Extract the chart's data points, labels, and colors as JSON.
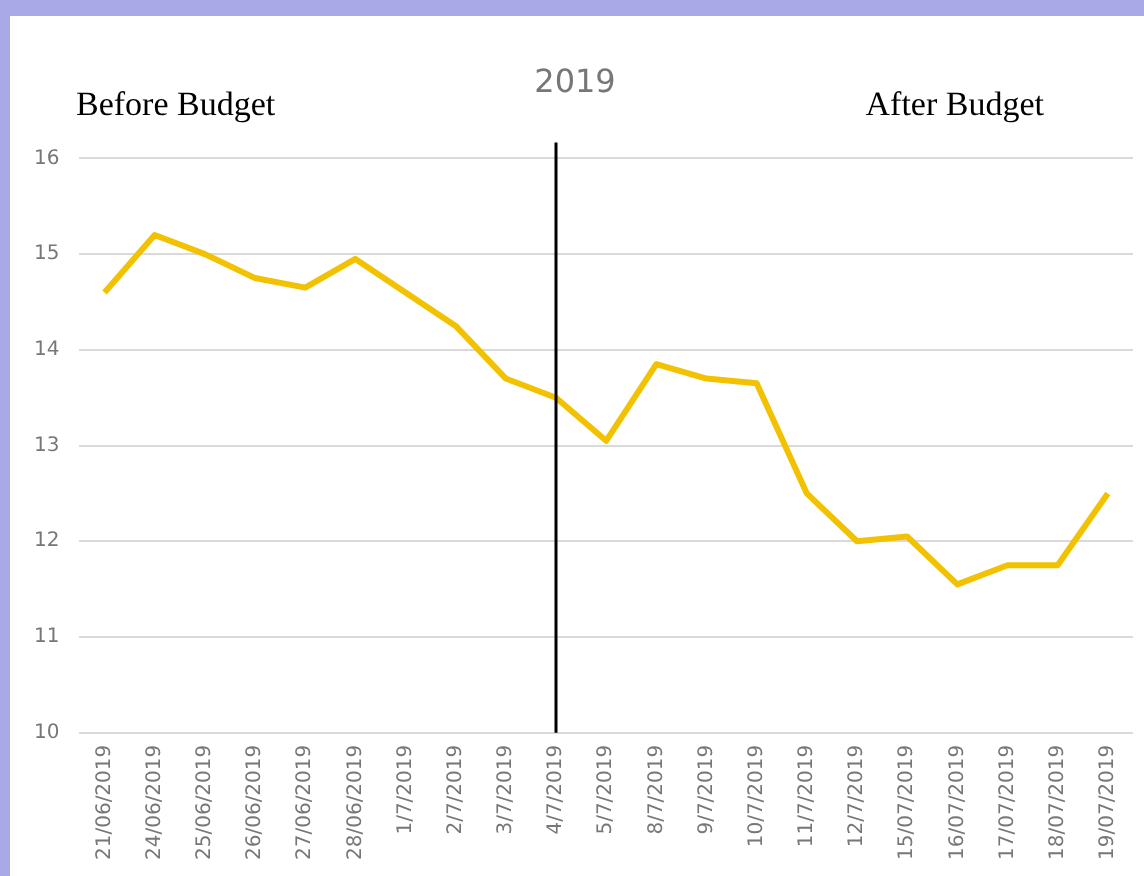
{
  "chart_data": {
    "type": "line",
    "title": "2019",
    "annotations": [
      "Before Budget",
      "After Budget"
    ],
    "categories": [
      "21/06/2019",
      "24/06/2019",
      "25/06/2019",
      "26/06/2019",
      "27/06/2019",
      "28/06/2019",
      "1/7/2019",
      "2/7/2019",
      "3/7/2019",
      "4/7/2019",
      "5/7/2019",
      "8/7/2019",
      "9/7/2019",
      "10/7/2019",
      "11/7/2019",
      "12/7/2019",
      "15/07/2019",
      "16/07/2019",
      "17/07/2019",
      "18/07/2019",
      "19/07/2019"
    ],
    "series": [
      {
        "color": "#f2c200",
        "values": [
          14.6,
          15.2,
          15.0,
          14.75,
          14.65,
          14.95,
          14.6,
          14.25,
          13.7,
          13.5,
          13.05,
          13.85,
          13.7,
          13.65,
          12.5,
          12.0,
          12.05,
          11.55,
          11.75,
          11.75,
          12.5
        ]
      }
    ],
    "ylim": [
      10,
      16
    ],
    "yticks": [
      10,
      11,
      12,
      13,
      14,
      15,
      16
    ],
    "ref_lines": [
      {
        "axis": "x",
        "value": "4/7/2019",
        "label": null,
        "color": "#000000"
      }
    ],
    "grid": "y",
    "legend": false,
    "marker": "none",
    "line_style": "solid"
  }
}
